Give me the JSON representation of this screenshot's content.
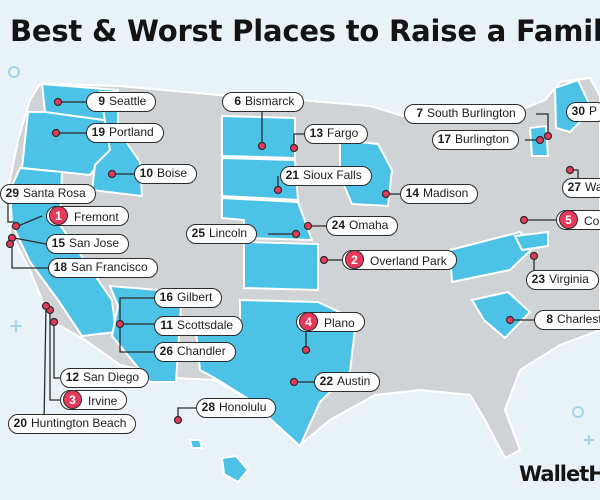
{
  "title": "Best & Worst Places to Raise a Famil",
  "brand": "WalletH",
  "colors": {
    "background": "#e9f3f7",
    "state_default": "#cfd3d6",
    "state_highlight": "#4cc3e6",
    "marker": "#e8395a",
    "pin": "#e8395a"
  },
  "places": [
    {
      "rank": "9",
      "name": "Seattle",
      "badge": false
    },
    {
      "rank": "19",
      "name": "Portland",
      "badge": false
    },
    {
      "rank": "10",
      "name": "Boise",
      "badge": false
    },
    {
      "rank": "29",
      "name": "Santa Rosa",
      "badge": false
    },
    {
      "rank": "1",
      "name": "Fremont",
      "badge": true
    },
    {
      "rank": "15",
      "name": "San Jose",
      "badge": false
    },
    {
      "rank": "18",
      "name": "San Francisco",
      "badge": false
    },
    {
      "rank": "6",
      "name": "Bismarck",
      "badge": false
    },
    {
      "rank": "13",
      "name": "Fargo",
      "badge": false
    },
    {
      "rank": "21",
      "name": "Sioux Falls",
      "badge": false
    },
    {
      "rank": "14",
      "name": "Madison",
      "badge": false
    },
    {
      "rank": "25",
      "name": "Lincoln",
      "badge": false
    },
    {
      "rank": "24",
      "name": "Omaha",
      "badge": false
    },
    {
      "rank": "2",
      "name": "Overland Park",
      "badge": true
    },
    {
      "rank": "7",
      "name": "South Burlington",
      "badge": false
    },
    {
      "rank": "17",
      "name": "Burlington",
      "badge": false
    },
    {
      "rank": "30",
      "name": "P",
      "badge": false
    },
    {
      "rank": "27",
      "name": "Wa",
      "badge": false
    },
    {
      "rank": "5",
      "name": "Colu",
      "badge": true
    },
    {
      "rank": "23",
      "name": "Virginia",
      "badge": false
    },
    {
      "rank": "8",
      "name": "Charlest",
      "badge": false
    },
    {
      "rank": "16",
      "name": "Gilbert",
      "badge": false
    },
    {
      "rank": "11",
      "name": "Scottsdale",
      "badge": false
    },
    {
      "rank": "26",
      "name": "Chandler",
      "badge": false
    },
    {
      "rank": "4",
      "name": "Plano",
      "badge": true
    },
    {
      "rank": "22",
      "name": "Austin",
      "badge": false
    },
    {
      "rank": "12",
      "name": "San Diego",
      "badge": false
    },
    {
      "rank": "3",
      "name": "Irvine",
      "badge": true
    },
    {
      "rank": "20",
      "name": "Huntington Beach",
      "badge": false
    },
    {
      "rank": "28",
      "name": "Honolulu",
      "badge": false
    }
  ]
}
